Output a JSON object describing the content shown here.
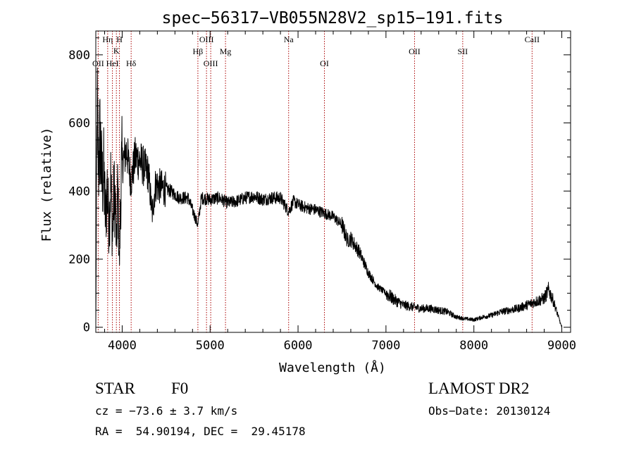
{
  "chart_data": {
    "type": "line",
    "title": "spec−56317−VB055N28V2_sp15−191.fits",
    "xlabel": "Wavelength (Å)",
    "ylabel": "Flux (relative)",
    "xlim": [
      3700,
      9100
    ],
    "ylim": [
      -15,
      870
    ],
    "x_ticks": [
      4000,
      5000,
      6000,
      7000,
      8000,
      9000
    ],
    "y_ticks": [
      0,
      200,
      400,
      600,
      800
    ],
    "grid": false,
    "line_color": "#000000",
    "marker_line_color": "#aa0000",
    "spectrum_anchors": [
      [
        3700,
        0
      ],
      [
        3715,
        640
      ],
      [
        3730,
        470
      ],
      [
        3750,
        560
      ],
      [
        3770,
        420
      ],
      [
        3790,
        450
      ],
      [
        3810,
        320
      ],
      [
        3830,
        410
      ],
      [
        3850,
        300
      ],
      [
        3870,
        430
      ],
      [
        3890,
        260
      ],
      [
        3905,
        390
      ],
      [
        3920,
        380
      ],
      [
        3935,
        230
      ],
      [
        3950,
        420
      ],
      [
        3968,
        180
      ],
      [
        3985,
        420
      ],
      [
        4000,
        480
      ],
      [
        4050,
        520
      ],
      [
        4101,
        430
      ],
      [
        4150,
        500
      ],
      [
        4200,
        490
      ],
      [
        4250,
        470
      ],
      [
        4300,
        450
      ],
      [
        4340,
        330
      ],
      [
        4380,
        420
      ],
      [
        4450,
        410
      ],
      [
        4550,
        400
      ],
      [
        4650,
        380
      ],
      [
        4750,
        380
      ],
      [
        4861,
        300
      ],
      [
        4900,
        380
      ],
      [
        5000,
        375
      ],
      [
        5100,
        380
      ],
      [
        5200,
        365
      ],
      [
        5300,
        370
      ],
      [
        5400,
        380
      ],
      [
        5500,
        385
      ],
      [
        5600,
        375
      ],
      [
        5700,
        380
      ],
      [
        5800,
        380
      ],
      [
        5893,
        340
      ],
      [
        5950,
        370
      ],
      [
        6000,
        360
      ],
      [
        6100,
        350
      ],
      [
        6200,
        345
      ],
      [
        6300,
        335
      ],
      [
        6400,
        325
      ],
      [
        6500,
        300
      ],
      [
        6563,
        255
      ],
      [
        6600,
        260
      ],
      [
        6700,
        220
      ],
      [
        6800,
        160
      ],
      [
        6900,
        120
      ],
      [
        7000,
        100
      ],
      [
        7100,
        80
      ],
      [
        7200,
        65
      ],
      [
        7300,
        60
      ],
      [
        7400,
        55
      ],
      [
        7500,
        55
      ],
      [
        7600,
        50
      ],
      [
        7700,
        45
      ],
      [
        7800,
        30
      ],
      [
        7900,
        25
      ],
      [
        8000,
        22
      ],
      [
        8100,
        30
      ],
      [
        8200,
        35
      ],
      [
        8300,
        45
      ],
      [
        8400,
        50
      ],
      [
        8500,
        55
      ],
      [
        8600,
        65
      ],
      [
        8700,
        75
      ],
      [
        8800,
        85
      ],
      [
        8850,
        110
      ],
      [
        8900,
        80
      ],
      [
        8950,
        40
      ],
      [
        9000,
        0
      ]
    ],
    "lines": [
      {
        "label": "OII",
        "wavelength": 3727,
        "row": 3
      },
      {
        "label": "Hη",
        "wavelength": 3835,
        "row": 0
      },
      {
        "label": "HeI",
        "wavelength": 3889,
        "row": 3
      },
      {
        "label": "K",
        "wavelength": 3934,
        "row": 1
      },
      {
        "label": "H",
        "wavelength": 3969,
        "row": 0
      },
      {
        "label": "Hδ",
        "wavelength": 4102,
        "row": 3
      },
      {
        "label": "Hβ",
        "wavelength": 4861,
        "row": 2
      },
      {
        "label": "OIII",
        "wavelength": 4959,
        "row": 0
      },
      {
        "label": "OIII",
        "wavelength": 5007,
        "row": 3
      },
      {
        "label": "Mg",
        "wavelength": 5175,
        "row": 2
      },
      {
        "label": "Na",
        "wavelength": 5893,
        "row": 0
      },
      {
        "label": "OI",
        "wavelength": 6300,
        "row": 3
      },
      {
        "label": "OII",
        "wavelength": 7325,
        "row": 2
      },
      {
        "label": "SII",
        "wavelength": 7873,
        "row": 2
      },
      {
        "label": "CaII",
        "wavelength": 8662,
        "row": 0
      }
    ]
  },
  "info": {
    "class": "STAR",
    "subclass": "F0",
    "survey": "LAMOST DR2",
    "redshift": "cz = −73.6 ± 3.7 km/s",
    "obs_date": "Obs−Date: 20130124",
    "coords": "RA =  54.90194, DEC =  29.45178"
  }
}
